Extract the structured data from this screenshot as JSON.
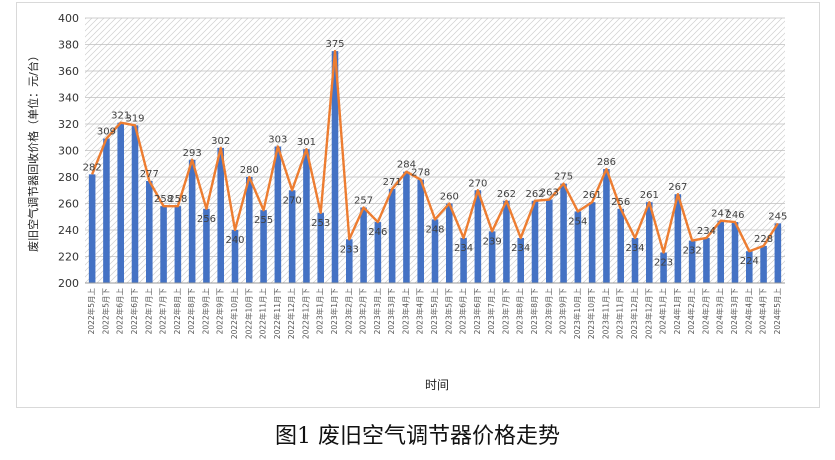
{
  "caption": "图1 废旧空气调节器价格走势",
  "chart_data": {
    "type": "bar",
    "title": "",
    "xlabel": "时间",
    "ylabel": "废旧空气调节器回收价格（单位：元/台）",
    "ylim": [
      200,
      400
    ],
    "yticks": [
      200,
      220,
      240,
      260,
      280,
      300,
      320,
      340,
      360,
      380,
      400
    ],
    "grid": true,
    "legend": "none",
    "colors": {
      "bar": "#4472c4",
      "line": "#ed7d31"
    },
    "categories": [
      "2022年5月上",
      "2022年5月下",
      "2022年6月上",
      "2022年6月下",
      "2022年7月上",
      "2022年7月下",
      "2022年8月上",
      "2022年8月下",
      "2022年9月上",
      "2022年9月下",
      "2022年10月上",
      "2022年10月下",
      "2022年11月上",
      "2022年11月下",
      "2022年12月上",
      "2022年12月下",
      "2023年1月上",
      "2023年1月下",
      "2023年2月上",
      "2023年2月下",
      "2023年3月上",
      "2023年3月下",
      "2023年4月上",
      "2023年4月下",
      "2023年5月上",
      "2023年5月下",
      "2023年6月上",
      "2023年6月下",
      "2023年7月上",
      "2023年7月下",
      "2023年8月上",
      "2023年8月下",
      "2023年9月上",
      "2023年9月下",
      "2023年10月上",
      "2023年10月下",
      "2023年11月上",
      "2023年11月下",
      "2023年12月上",
      "2023年12月下",
      "2024年1月上",
      "2024年1月下",
      "2024年2月上",
      "2024年2月下",
      "2024年3月上",
      "2024年3月下",
      "2024年4月上",
      "2024年4月下",
      "2024年5月上"
    ],
    "values": [
      282,
      309,
      321,
      319,
      277,
      258,
      258,
      293,
      256,
      302,
      240,
      280,
      255,
      303,
      270,
      301,
      253,
      375,
      233,
      257,
      246,
      271,
      284,
      278,
      248,
      260,
      234,
      270,
      239,
      262,
      234,
      262,
      263,
      275,
      254,
      261,
      286,
      256,
      234,
      261,
      223,
      267,
      232,
      234,
      247,
      246,
      224,
      228,
      245
    ]
  }
}
